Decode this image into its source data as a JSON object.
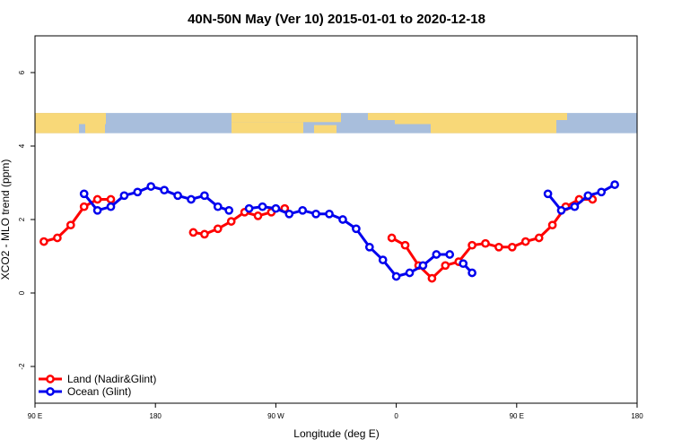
{
  "chart_data": {
    "type": "line",
    "title": "40N-50N May (Ver 10)   2015-01-01 to 2020-12-18",
    "xlabel": "Longitude (deg E)",
    "ylabel": "XCO2 - MLO trend (ppm)",
    "xlim": [
      -90,
      180
    ],
    "ylim": [
      -3,
      7
    ],
    "x_ticks": [
      {
        "value": -90,
        "label": "90 E"
      },
      {
        "value": -36,
        "label": "180"
      },
      {
        "value": 18,
        "label": "90 W"
      },
      {
        "value": 72,
        "label": "0"
      },
      {
        "value": 126,
        "label": "90 E"
      },
      {
        "value": 180,
        "label": "180"
      }
    ],
    "y_ticks": [
      {
        "value": -2,
        "label": "-2"
      },
      {
        "value": 0,
        "label": "0"
      },
      {
        "value": 2,
        "label": "2"
      },
      {
        "value": 4,
        "label": "4"
      },
      {
        "value": 6,
        "label": "6"
      }
    ],
    "map_strip": {
      "y_range": [
        4.35,
        4.9
      ],
      "land_color": "#f8d878",
      "ocean_color": "#a8bedc"
    },
    "legend_position": "bottom-left",
    "series": [
      {
        "name": "Land (Nadir&Glint)",
        "color": "#ff0000",
        "segments": [
          [
            [
              -86,
              1.4
            ],
            [
              -80,
              1.5
            ],
            [
              -74,
              1.85
            ],
            [
              -68,
              2.35
            ],
            [
              -62,
              2.55
            ],
            [
              -56,
              2.55
            ]
          ],
          [
            [
              -19,
              1.65
            ],
            [
              -14,
              1.6
            ],
            [
              -8,
              1.75
            ],
            [
              -2,
              1.95
            ],
            [
              4,
              2.2
            ],
            [
              10,
              2.1
            ],
            [
              16,
              2.2
            ],
            [
              22,
              2.3
            ]
          ],
          [
            [
              70,
              1.5
            ],
            [
              76,
              1.3
            ],
            [
              82,
              0.75
            ],
            [
              88,
              0.4
            ],
            [
              94,
              0.75
            ],
            [
              100,
              0.85
            ],
            [
              106,
              1.3
            ],
            [
              112,
              1.35
            ],
            [
              118,
              1.25
            ],
            [
              124,
              1.25
            ],
            [
              130,
              1.4
            ],
            [
              136,
              1.5
            ],
            [
              142,
              1.85
            ],
            [
              148,
              2.35
            ],
            [
              154,
              2.55
            ],
            [
              160,
              2.55
            ]
          ]
        ]
      },
      {
        "name": "Ocean (Glint)",
        "color": "#0000ee",
        "segments": [
          [
            [
              -68,
              2.7
            ],
            [
              -62,
              2.25
            ],
            [
              -56,
              2.35
            ],
            [
              -50,
              2.65
            ],
            [
              -44,
              2.75
            ],
            [
              -38,
              2.9
            ],
            [
              -32,
              2.8
            ],
            [
              -26,
              2.65
            ],
            [
              -20,
              2.55
            ],
            [
              -14,
              2.65
            ],
            [
              -8,
              2.35
            ],
            [
              -3,
              2.25
            ]
          ],
          [
            [
              6,
              2.3
            ],
            [
              12,
              2.35
            ],
            [
              18,
              2.3
            ],
            [
              24,
              2.15
            ],
            [
              30,
              2.25
            ],
            [
              36,
              2.15
            ],
            [
              42,
              2.15
            ],
            [
              48,
              2.0
            ],
            [
              54,
              1.75
            ],
            [
              60,
              1.25
            ],
            [
              66,
              0.9
            ],
            [
              72,
              0.45
            ],
            [
              78,
              0.55
            ],
            [
              84,
              0.75
            ],
            [
              90,
              1.05
            ],
            [
              96,
              1.05
            ]
          ],
          [
            [
              102,
              0.8
            ],
            [
              106,
              0.55
            ]
          ],
          [
            [
              140,
              2.7
            ],
            [
              146,
              2.25
            ],
            [
              152,
              2.35
            ],
            [
              158,
              2.65
            ],
            [
              164,
              2.75
            ],
            [
              170,
              2.95
            ]
          ]
        ]
      }
    ]
  }
}
